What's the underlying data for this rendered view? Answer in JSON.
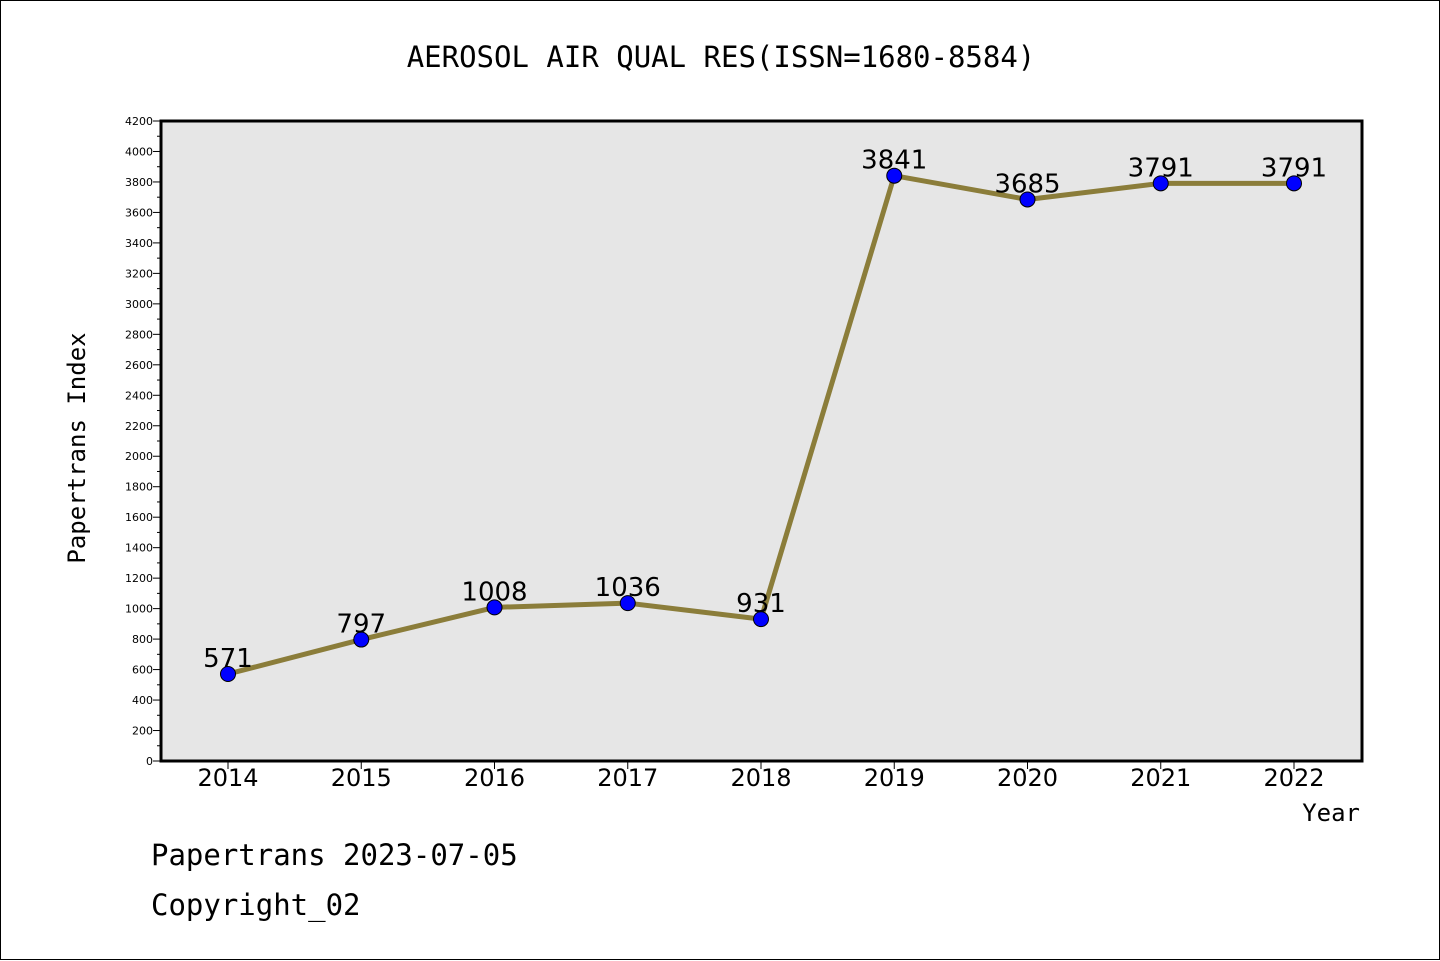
{
  "chart_data": {
    "type": "line",
    "title": "AEROSOL AIR QUAL RES(ISSN=1680-8584)",
    "xlabel": "Year",
    "ylabel": "Papertrans Index",
    "categories": [
      "2014",
      "2015",
      "2016",
      "2017",
      "2018",
      "2019",
      "2020",
      "2021",
      "2022"
    ],
    "series": [
      {
        "values": [
          571,
          797,
          1008,
          1036,
          931,
          3841,
          3685,
          3791,
          3791
        ]
      }
    ],
    "data_labels": [
      "571",
      "797",
      "1008",
      "1036",
      "931",
      "3841",
      "3685",
      "3791",
      "3791"
    ],
    "ylim": [
      0,
      4200
    ],
    "yticks": [
      "0",
      "200",
      "400",
      "600",
      "800",
      "1000",
      "1200",
      "1400",
      "1600",
      "1800",
      "2000",
      "2200",
      "2400",
      "2600",
      "2800",
      "3000",
      "3200",
      "3400",
      "3600",
      "3800",
      "4000",
      "4200"
    ],
    "grid": false,
    "colors": {
      "line": "#8b7d3a",
      "marker": "#0000ff",
      "plot_bg": "#e6e6e6"
    }
  },
  "footer": {
    "source": "Papertrans 2023-07-05",
    "copyright": "Copyright_02"
  }
}
